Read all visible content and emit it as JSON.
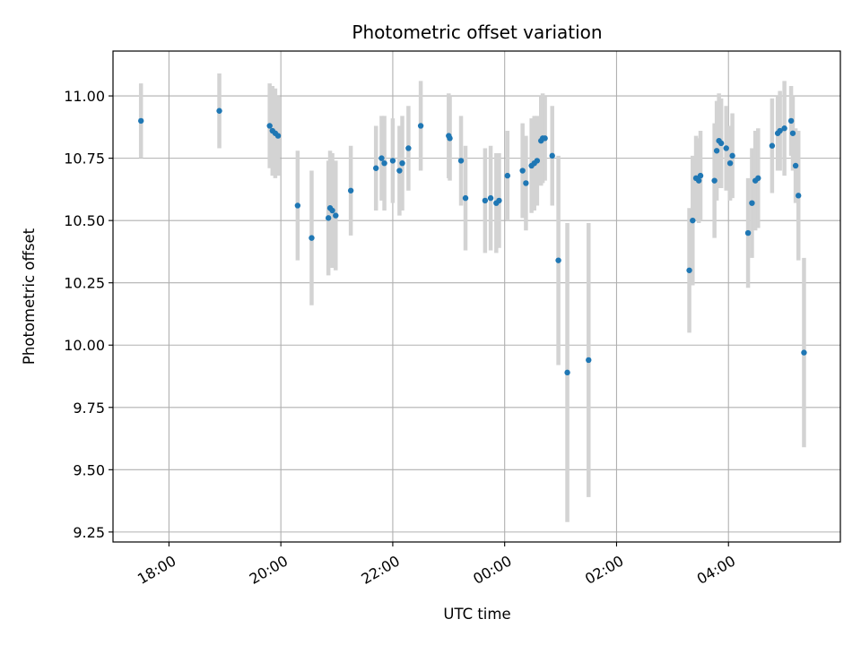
{
  "chart_data": {
    "type": "scatter",
    "title": "Photometric offset variation",
    "xlabel": "UTC time",
    "ylabel": "Photometric offset",
    "x_unit": "hours since 00:00 UTC (negative = previous day)",
    "xlim": [
      -7.0,
      6.0
    ],
    "ylim": [
      9.21,
      11.18
    ],
    "grid": true,
    "legend": "none",
    "x_ticks": [
      {
        "value": -6,
        "label": "18:00"
      },
      {
        "value": -4,
        "label": "20:00"
      },
      {
        "value": -2,
        "label": "22:00"
      },
      {
        "value": 0,
        "label": "00:00"
      },
      {
        "value": 2,
        "label": "02:00"
      },
      {
        "value": 4,
        "label": "04:00"
      }
    ],
    "y_ticks": [
      {
        "value": 9.25,
        "label": "9.25"
      },
      {
        "value": 9.5,
        "label": "9.50"
      },
      {
        "value": 9.75,
        "label": "9.75"
      },
      {
        "value": 10.0,
        "label": "10.00"
      },
      {
        "value": 10.25,
        "label": "10.25"
      },
      {
        "value": 10.5,
        "label": "10.50"
      },
      {
        "value": 10.75,
        "label": "10.75"
      },
      {
        "value": 11.0,
        "label": "11.00"
      }
    ],
    "colors": {
      "marker": "#1f77b4",
      "errorbar": "#d3d3d3",
      "grid": "#b0b0b0"
    },
    "series": [
      {
        "points": [
          {
            "x": -6.5,
            "y": 10.9,
            "err": 0.15
          },
          {
            "x": -5.1,
            "y": 10.94,
            "err": 0.15
          },
          {
            "x": -4.2,
            "y": 10.88,
            "err": 0.17
          },
          {
            "x": -4.15,
            "y": 10.86,
            "err": 0.18
          },
          {
            "x": -4.1,
            "y": 10.85,
            "err": 0.18
          },
          {
            "x": -4.05,
            "y": 10.84,
            "err": 0.16
          },
          {
            "x": -3.7,
            "y": 10.56,
            "err": 0.22
          },
          {
            "x": -3.45,
            "y": 10.43,
            "err": 0.27
          },
          {
            "x": -3.15,
            "y": 10.51,
            "err": 0.23
          },
          {
            "x": -3.12,
            "y": 10.55,
            "err": 0.23
          },
          {
            "x": -3.08,
            "y": 10.54,
            "err": 0.23
          },
          {
            "x": -3.02,
            "y": 10.52,
            "err": 0.22
          },
          {
            "x": -2.75,
            "y": 10.62,
            "err": 0.18
          },
          {
            "x": -2.3,
            "y": 10.71,
            "err": 0.17
          },
          {
            "x": -2.2,
            "y": 10.75,
            "err": 0.17
          },
          {
            "x": -2.15,
            "y": 10.73,
            "err": 0.19
          },
          {
            "x": -2.0,
            "y": 10.74,
            "err": 0.17
          },
          {
            "x": -1.88,
            "y": 10.7,
            "err": 0.18
          },
          {
            "x": -1.83,
            "y": 10.73,
            "err": 0.19
          },
          {
            "x": -1.72,
            "y": 10.79,
            "err": 0.17
          },
          {
            "x": -1.5,
            "y": 10.88,
            "err": 0.18
          },
          {
            "x": -1.0,
            "y": 10.84,
            "err": 0.17
          },
          {
            "x": -0.98,
            "y": 10.83,
            "err": 0.17
          },
          {
            "x": -0.78,
            "y": 10.74,
            "err": 0.18
          },
          {
            "x": -0.7,
            "y": 10.59,
            "err": 0.21
          },
          {
            "x": -0.35,
            "y": 10.58,
            "err": 0.21
          },
          {
            "x": -0.25,
            "y": 10.59,
            "err": 0.21
          },
          {
            "x": -0.15,
            "y": 10.57,
            "err": 0.2
          },
          {
            "x": -0.1,
            "y": 10.58,
            "err": 0.19
          },
          {
            "x": 0.05,
            "y": 10.68,
            "err": 0.18
          },
          {
            "x": 0.32,
            "y": 10.7,
            "err": 0.19
          },
          {
            "x": 0.38,
            "y": 10.65,
            "err": 0.19
          },
          {
            "x": 0.48,
            "y": 10.72,
            "err": 0.19
          },
          {
            "x": 0.53,
            "y": 10.73,
            "err": 0.19
          },
          {
            "x": 0.58,
            "y": 10.74,
            "err": 0.18
          },
          {
            "x": 0.65,
            "y": 10.82,
            "err": 0.18
          },
          {
            "x": 0.68,
            "y": 10.83,
            "err": 0.18
          },
          {
            "x": 0.72,
            "y": 10.83,
            "err": 0.17
          },
          {
            "x": 0.85,
            "y": 10.76,
            "err": 0.2
          },
          {
            "x": 0.96,
            "y": 10.34,
            "err": 0.42
          },
          {
            "x": 1.12,
            "y": 9.89,
            "err": 0.6
          },
          {
            "x": 1.5,
            "y": 9.94,
            "err": 0.55
          },
          {
            "x": 3.3,
            "y": 10.3,
            "err": 0.25
          },
          {
            "x": 3.36,
            "y": 10.5,
            "err": 0.26
          },
          {
            "x": 3.42,
            "y": 10.67,
            "err": 0.17
          },
          {
            "x": 3.47,
            "y": 10.66,
            "err": 0.17
          },
          {
            "x": 3.5,
            "y": 10.68,
            "err": 0.18
          },
          {
            "x": 3.75,
            "y": 10.66,
            "err": 0.23
          },
          {
            "x": 3.79,
            "y": 10.78,
            "err": 0.2
          },
          {
            "x": 3.83,
            "y": 10.82,
            "err": 0.19
          },
          {
            "x": 3.87,
            "y": 10.81,
            "err": 0.18
          },
          {
            "x": 3.96,
            "y": 10.79,
            "err": 0.17
          },
          {
            "x": 4.03,
            "y": 10.73,
            "err": 0.15
          },
          {
            "x": 4.07,
            "y": 10.76,
            "err": 0.17
          },
          {
            "x": 4.35,
            "y": 10.45,
            "err": 0.22
          },
          {
            "x": 4.42,
            "y": 10.57,
            "err": 0.22
          },
          {
            "x": 4.48,
            "y": 10.66,
            "err": 0.2
          },
          {
            "x": 4.53,
            "y": 10.67,
            "err": 0.2
          },
          {
            "x": 4.78,
            "y": 10.8,
            "err": 0.19
          },
          {
            "x": 4.88,
            "y": 10.85,
            "err": 0.15
          },
          {
            "x": 4.92,
            "y": 10.86,
            "err": 0.16
          },
          {
            "x": 5.0,
            "y": 10.87,
            "err": 0.19
          },
          {
            "x": 5.12,
            "y": 10.9,
            "err": 0.14
          },
          {
            "x": 5.15,
            "y": 10.85,
            "err": 0.15
          },
          {
            "x": 5.2,
            "y": 10.72,
            "err": 0.15
          },
          {
            "x": 5.25,
            "y": 10.6,
            "err": 0.26
          },
          {
            "x": 5.35,
            "y": 9.97,
            "err": 0.38
          }
        ]
      }
    ]
  }
}
